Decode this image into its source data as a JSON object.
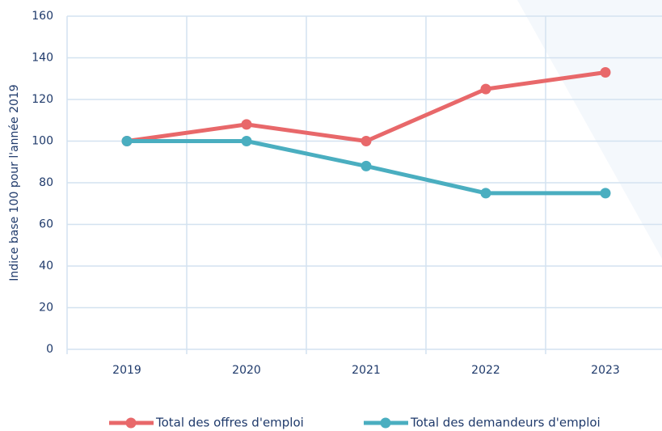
{
  "chart_data": {
    "type": "line",
    "y_label": "Indice base 100 pour l'année 2019",
    "categories": [
      "2019",
      "2020",
      "2021",
      "2022",
      "2023"
    ],
    "series": [
      {
        "name": "Total des offres d'emploi",
        "color": "#e8686a",
        "values": [
          100,
          108,
          100,
          125,
          133
        ]
      },
      {
        "name": "Total des demandeurs d'emploi",
        "color": "#4aaec0",
        "values": [
          100,
          100,
          88,
          75,
          75
        ]
      }
    ],
    "ylim": [
      0,
      160
    ],
    "yticks": [
      0,
      20,
      40,
      60,
      80,
      100,
      120,
      140,
      160
    ],
    "grid": true
  }
}
